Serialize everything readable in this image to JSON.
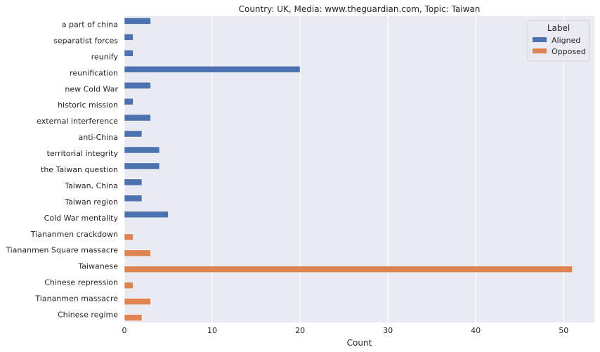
{
  "chart_data": {
    "type": "bar",
    "orientation": "horizontal",
    "title": "Country: UK, Media: www.theguardian.com, Topic: Taiwan",
    "xlabel": "Count",
    "ylabel": "",
    "xlim": [
      0,
      53.5
    ],
    "xticks": [
      0,
      10,
      20,
      30,
      40,
      50
    ],
    "grid": true,
    "categories": [
      "a part of china",
      "separatist forces",
      "reunify",
      "reunification",
      "new Cold War",
      "historic mission",
      "external interference",
      "anti-China",
      "territorial integrity",
      "the Taiwan question",
      "Taiwan, China",
      "Taiwan region",
      "Cold War mentality",
      "Tiananmen crackdown",
      "Tiananmen Square massacre",
      "Taiwanese",
      "Chinese repression",
      "Tiananmen massacre",
      "Chinese regime"
    ],
    "series": [
      {
        "name": "Aligned",
        "color": "#4c72b0",
        "values": [
          3,
          1,
          1,
          20,
          3,
          1,
          3,
          2,
          4,
          4,
          2,
          2,
          5,
          null,
          null,
          null,
          null,
          null,
          null
        ]
      },
      {
        "name": "Opposed",
        "color": "#dd8452",
        "values": [
          null,
          null,
          null,
          null,
          null,
          null,
          null,
          null,
          null,
          null,
          null,
          null,
          null,
          1,
          3,
          51,
          1,
          3,
          2
        ]
      }
    ],
    "legend": {
      "title": "Label",
      "placement": "top-right"
    },
    "background_color": "#eaeaf2",
    "grid_color": "#ffffff"
  }
}
